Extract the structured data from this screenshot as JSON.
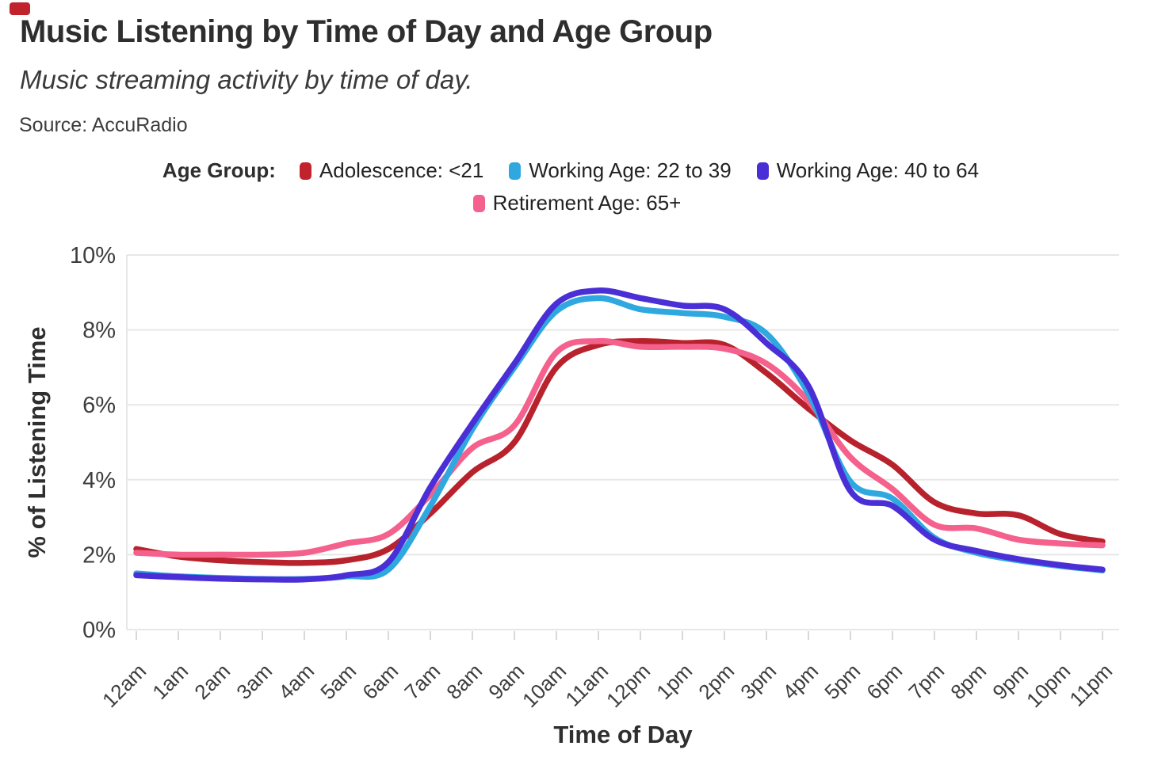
{
  "header": {
    "title": "Music Listening by Time of Day and Age Group",
    "subtitle": "Music streaming activity by time of day.",
    "source": "Source: AccuRadio",
    "corner_mark_color": "#c0232c"
  },
  "legend": {
    "label": "Age Group:",
    "items": [
      {
        "label": "Adolescence: <21",
        "color": "#c0232c"
      },
      {
        "label": "Working Age: 22 to 39",
        "color": "#2fa8e0"
      },
      {
        "label": "Working Age: 40 to 64",
        "color": "#4a2fd6"
      },
      {
        "label": "Retirement Age: 65+",
        "color": "#f4618d"
      }
    ]
  },
  "chart_data": {
    "type": "line",
    "title": "Music Listening by Time of Day and Age Group",
    "subtitle": "Music streaming activity by time of day.",
    "source": "Source: AccuRadio",
    "xlabel": "Time of Day",
    "ylabel": "% of Listening Time",
    "x": [
      "12am",
      "1am",
      "2am",
      "3am",
      "4am",
      "5am",
      "6am",
      "7am",
      "8am",
      "9am",
      "10am",
      "11am",
      "12pm",
      "1pm",
      "2pm",
      "3pm",
      "4pm",
      "5pm",
      "6pm",
      "7pm",
      "8pm",
      "9pm",
      "10pm",
      "11pm"
    ],
    "y_ticks": [
      "0%",
      "2%",
      "4%",
      "6%",
      "8%",
      "10%"
    ],
    "ylim": [
      0,
      10
    ],
    "grid": true,
    "legend_position": "top",
    "unit": "percent",
    "series": [
      {
        "id": "adolescence-under-21",
        "name": "Adolescence: <21",
        "color": "#b8222d",
        "values": [
          2.15,
          1.95,
          1.85,
          1.8,
          1.78,
          1.85,
          2.15,
          3.1,
          4.2,
          5.0,
          7.0,
          7.6,
          7.7,
          7.65,
          7.6,
          6.85,
          5.9,
          5.05,
          4.4,
          3.4,
          3.1,
          3.05,
          2.55,
          2.35
        ]
      },
      {
        "id": "working-age-22-39",
        "name": "Working Age: 22 to 39",
        "color": "#2fa8e0",
        "values": [
          1.5,
          1.42,
          1.38,
          1.35,
          1.35,
          1.42,
          1.6,
          3.3,
          5.35,
          7.0,
          8.5,
          8.85,
          8.55,
          8.45,
          8.35,
          7.9,
          6.3,
          3.95,
          3.5,
          2.45,
          2.05,
          1.85,
          1.7,
          1.58
        ]
      },
      {
        "id": "working-age-40-64",
        "name": "Working Age: 40 to 64",
        "color": "#4a2fd6",
        "values": [
          1.45,
          1.4,
          1.36,
          1.34,
          1.34,
          1.45,
          1.8,
          3.8,
          5.5,
          7.1,
          8.7,
          9.05,
          8.85,
          8.65,
          8.55,
          7.65,
          6.5,
          3.7,
          3.3,
          2.4,
          2.1,
          1.88,
          1.72,
          1.6
        ]
      },
      {
        "id": "retirement-65-plus",
        "name": "Retirement Age: 65+",
        "color": "#f4618d",
        "values": [
          2.05,
          2.0,
          2.0,
          2.0,
          2.05,
          2.3,
          2.55,
          3.6,
          4.85,
          5.45,
          7.4,
          7.7,
          7.55,
          7.55,
          7.5,
          7.1,
          6.1,
          4.6,
          3.75,
          2.8,
          2.7,
          2.4,
          2.3,
          2.25
        ]
      }
    ]
  }
}
